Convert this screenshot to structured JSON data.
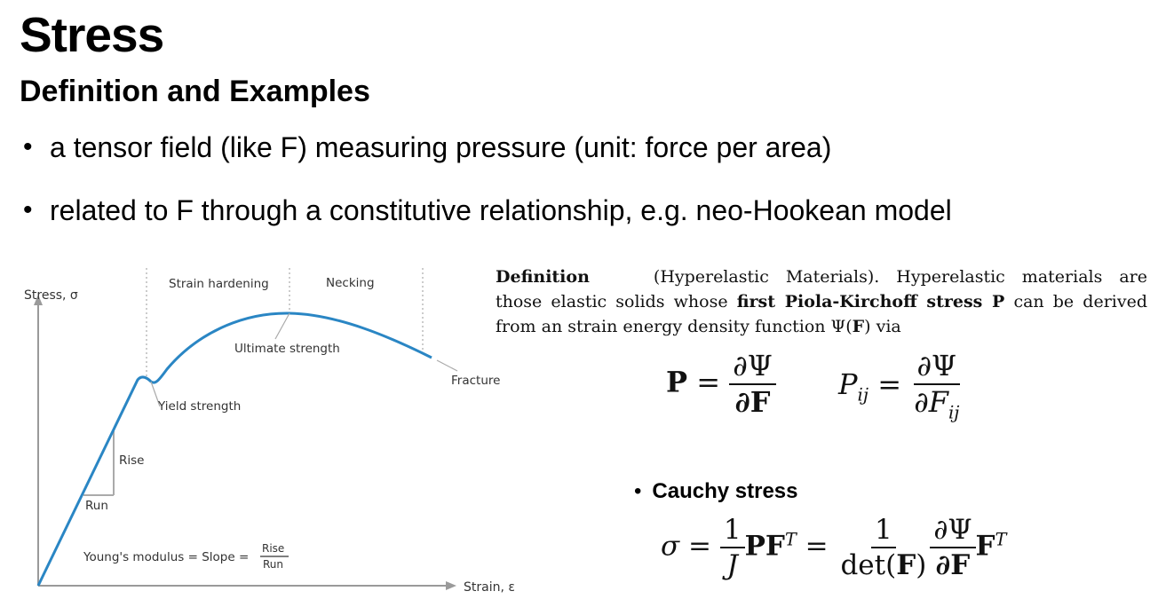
{
  "title": "Stress",
  "subtitle": "Definition and Examples",
  "bullets": [
    "a tensor field (like F) measuring pressure (unit: force per area)",
    "related to F through a constitutive relationship, e.g. neo-Hookean model"
  ],
  "diagram": {
    "y_axis_label": "Stress, σ",
    "x_axis_label": "Strain, ε",
    "regions": [
      "Strain hardening",
      "Necking"
    ],
    "annotations": {
      "ultimate": "Ultimate strength",
      "fracture": "Fracture",
      "yield": "Yield strength",
      "rise": "Rise",
      "run": "Run",
      "youngs": "Young's modulus = Slope =",
      "frac_num": "Rise",
      "frac_den": "Run"
    },
    "colors": {
      "curve": "#2a86c4",
      "axis": "#9a9a9a"
    }
  },
  "definition": {
    "label": "Definition",
    "paren": "(Hyperelastic Materials).",
    "t1": "Hyperelastic materials are those elastic solids whose",
    "bold": "first Piola-Kirchoff stress P",
    "t2": "can be derived from an strain energy density function Ψ(",
    "boldF": "F",
    "t3": ") via"
  },
  "equations": {
    "P": "P",
    "eq": "=",
    "dPsi": "∂Ψ",
    "dF": "∂F",
    "Pij": "P",
    "ij": "ij",
    "dFij": "∂F"
  },
  "cauchy": {
    "label": "Cauchy stress",
    "sigma": "σ",
    "one": "1",
    "J": "J",
    "PF": "PF",
    "T": "T",
    "det": "det(",
    "F": "F",
    "close": ")"
  }
}
